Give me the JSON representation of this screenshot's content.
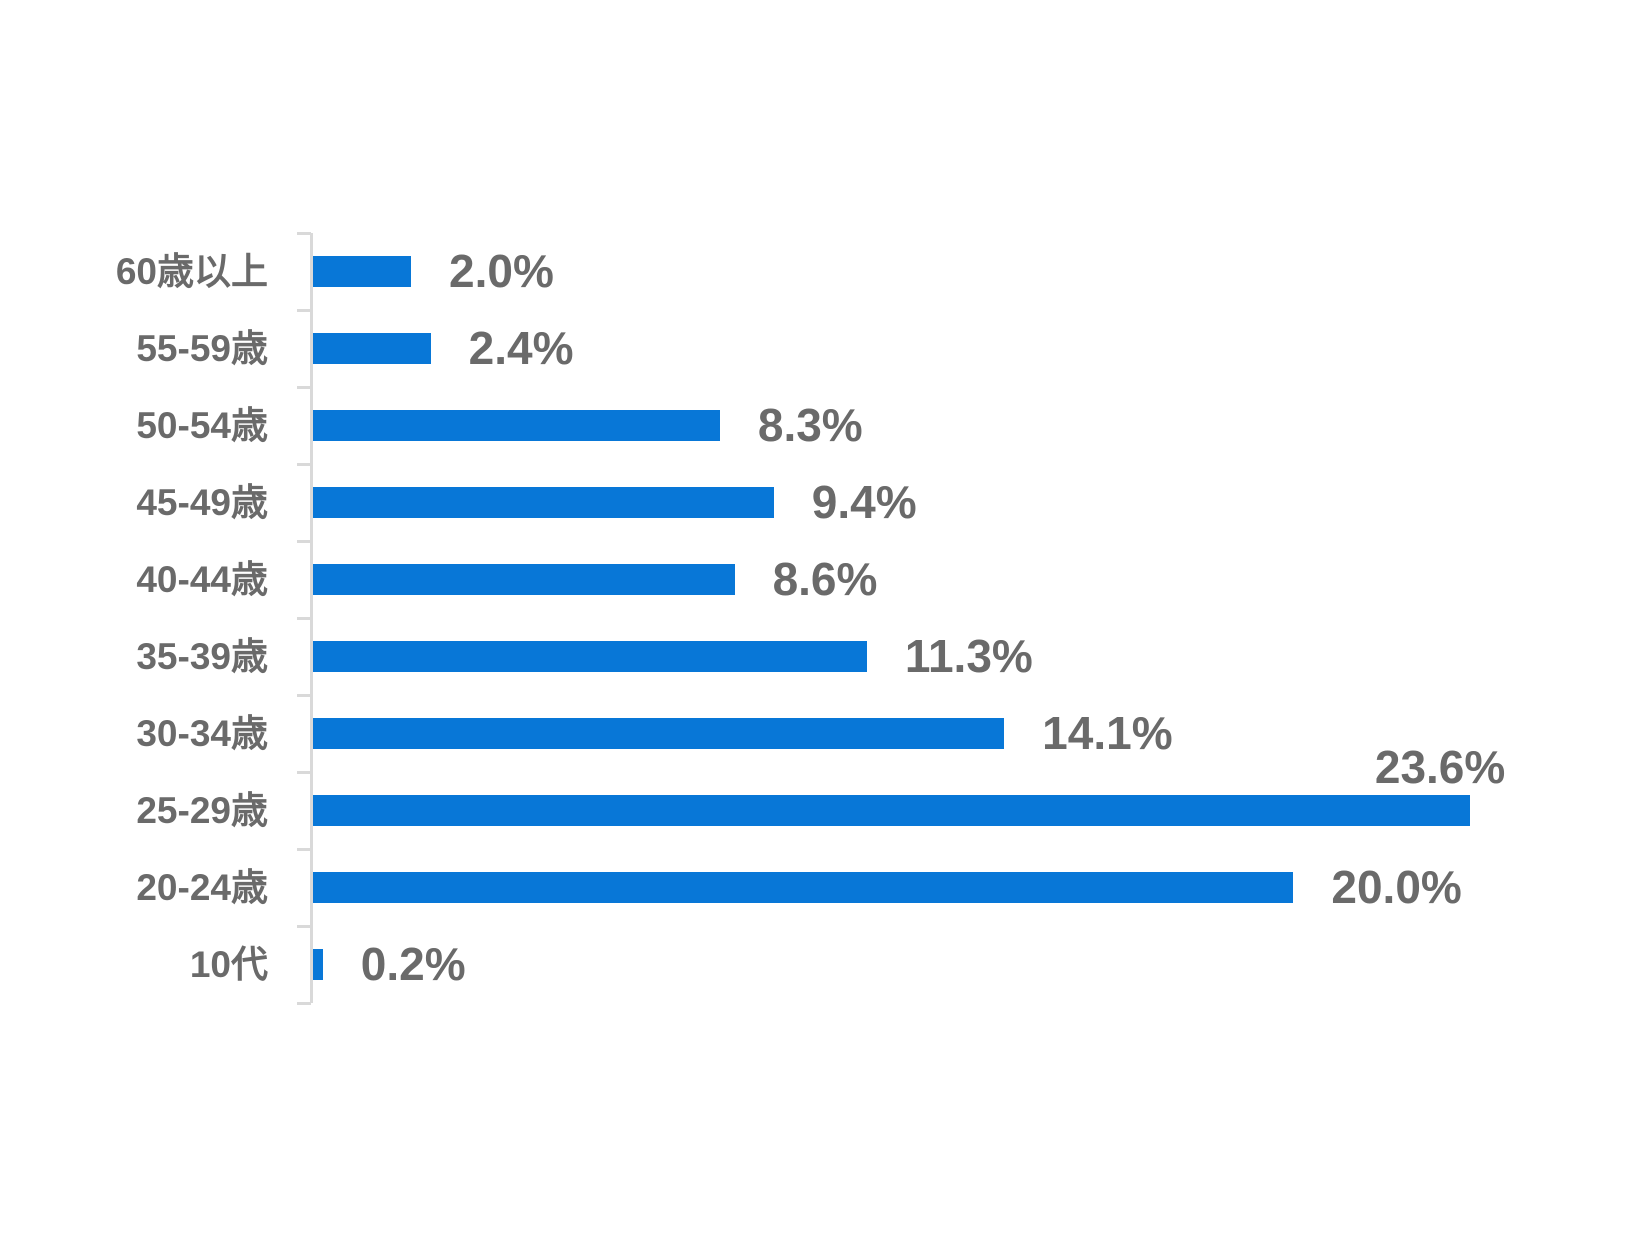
{
  "page": {
    "background": "#ffffff"
  },
  "chart_data": {
    "type": "bar",
    "orientation": "horizontal",
    "title": "",
    "xlabel": "",
    "ylabel": "",
    "categories": [
      "60歳以上",
      "55-59歳",
      "50-54歳",
      "45-49歳",
      "40-44歳",
      "35-39歳",
      "30-34歳",
      "25-29歳",
      "20-24歳",
      "10代"
    ],
    "values": [
      2.0,
      2.4,
      8.3,
      9.4,
      8.6,
      11.3,
      14.1,
      23.6,
      20.0,
      0.2
    ],
    "value_labels": [
      "2.0%",
      "2.4%",
      "8.3%",
      "9.4%",
      "8.6%",
      "11.3%",
      "14.1%",
      "23.6%",
      "20.0%",
      "0.2%"
    ],
    "value_label_placement": [
      "right",
      "right",
      "right",
      "right",
      "right",
      "right",
      "right",
      "above-end",
      "right",
      "right"
    ],
    "unit": "%",
    "xlim": [
      0,
      25.5
    ],
    "grid": false,
    "legend": false,
    "bar_color": "#0877d7",
    "label_color": "#6a6a6a",
    "axis_color": "#d9d9d9"
  }
}
